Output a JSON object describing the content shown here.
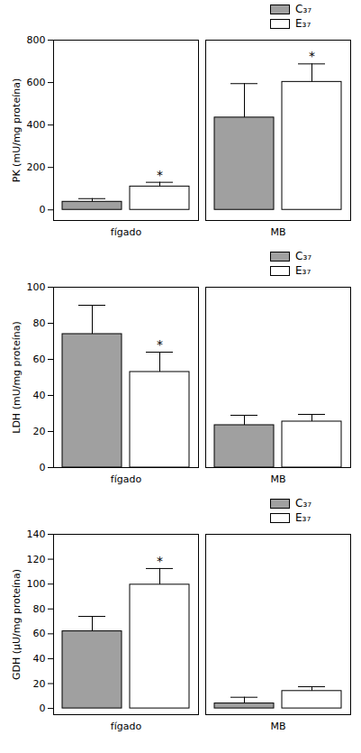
{
  "chart_data": [
    {
      "type": "bar",
      "y_label": "PK (mU/mg proteína)",
      "categories": [
        "fígado",
        "MB"
      ],
      "series": [
        {
          "name": "C₃₇",
          "color": "#a0a0a0",
          "values": [
            38,
            435
          ],
          "errors": [
            15,
            160
          ]
        },
        {
          "name": "E₃₇",
          "color": "#ffffff",
          "values": [
            110,
            603
          ],
          "errors": [
            20,
            85
          ]
        }
      ],
      "ylim": [
        -50,
        800
      ],
      "yticks": [
        0,
        200,
        400,
        600,
        800
      ],
      "legend": "top-right",
      "annotations": [
        {
          "text": "*",
          "category": "fígado",
          "series": "E₃₇"
        },
        {
          "text": "*",
          "category": "MB",
          "series": "E₃₇"
        }
      ]
    },
    {
      "type": "bar",
      "y_label": "LDH (mU/mg proteína)",
      "categories": [
        "fígado",
        "MB"
      ],
      "series": [
        {
          "name": "C₃₇",
          "color": "#a0a0a0",
          "values": [
            74,
            23.5
          ],
          "errors": [
            16,
            5.5
          ]
        },
        {
          "name": "E₃₇",
          "color": "#ffffff",
          "values": [
            53,
            25.5
          ],
          "errors": [
            11,
            4
          ]
        }
      ],
      "ylim": [
        0,
        100
      ],
      "yticks": [
        0,
        20,
        40,
        60,
        80,
        100
      ],
      "legend": "top-right",
      "annotations": [
        {
          "text": "*",
          "category": "fígado",
          "series": "E₃₇"
        }
      ]
    },
    {
      "type": "bar",
      "y_label": "GDH (μU/mg proteína)",
      "categories": [
        "fígado",
        "MB"
      ],
      "series": [
        {
          "name": "C₃₇",
          "color": "#a0a0a0",
          "values": [
            62,
            4
          ],
          "errors": [
            12,
            5
          ]
        },
        {
          "name": "E₃₇",
          "color": "#ffffff",
          "values": [
            99.5,
            14
          ],
          "errors": [
            13,
            3.5
          ]
        }
      ],
      "ylim": [
        -5,
        140
      ],
      "yticks": [
        0,
        20,
        40,
        60,
        80,
        100,
        120,
        140
      ],
      "legend": "top-right",
      "annotations": [
        {
          "text": "*",
          "category": "fígado",
          "series": "E₃₇"
        }
      ]
    }
  ]
}
